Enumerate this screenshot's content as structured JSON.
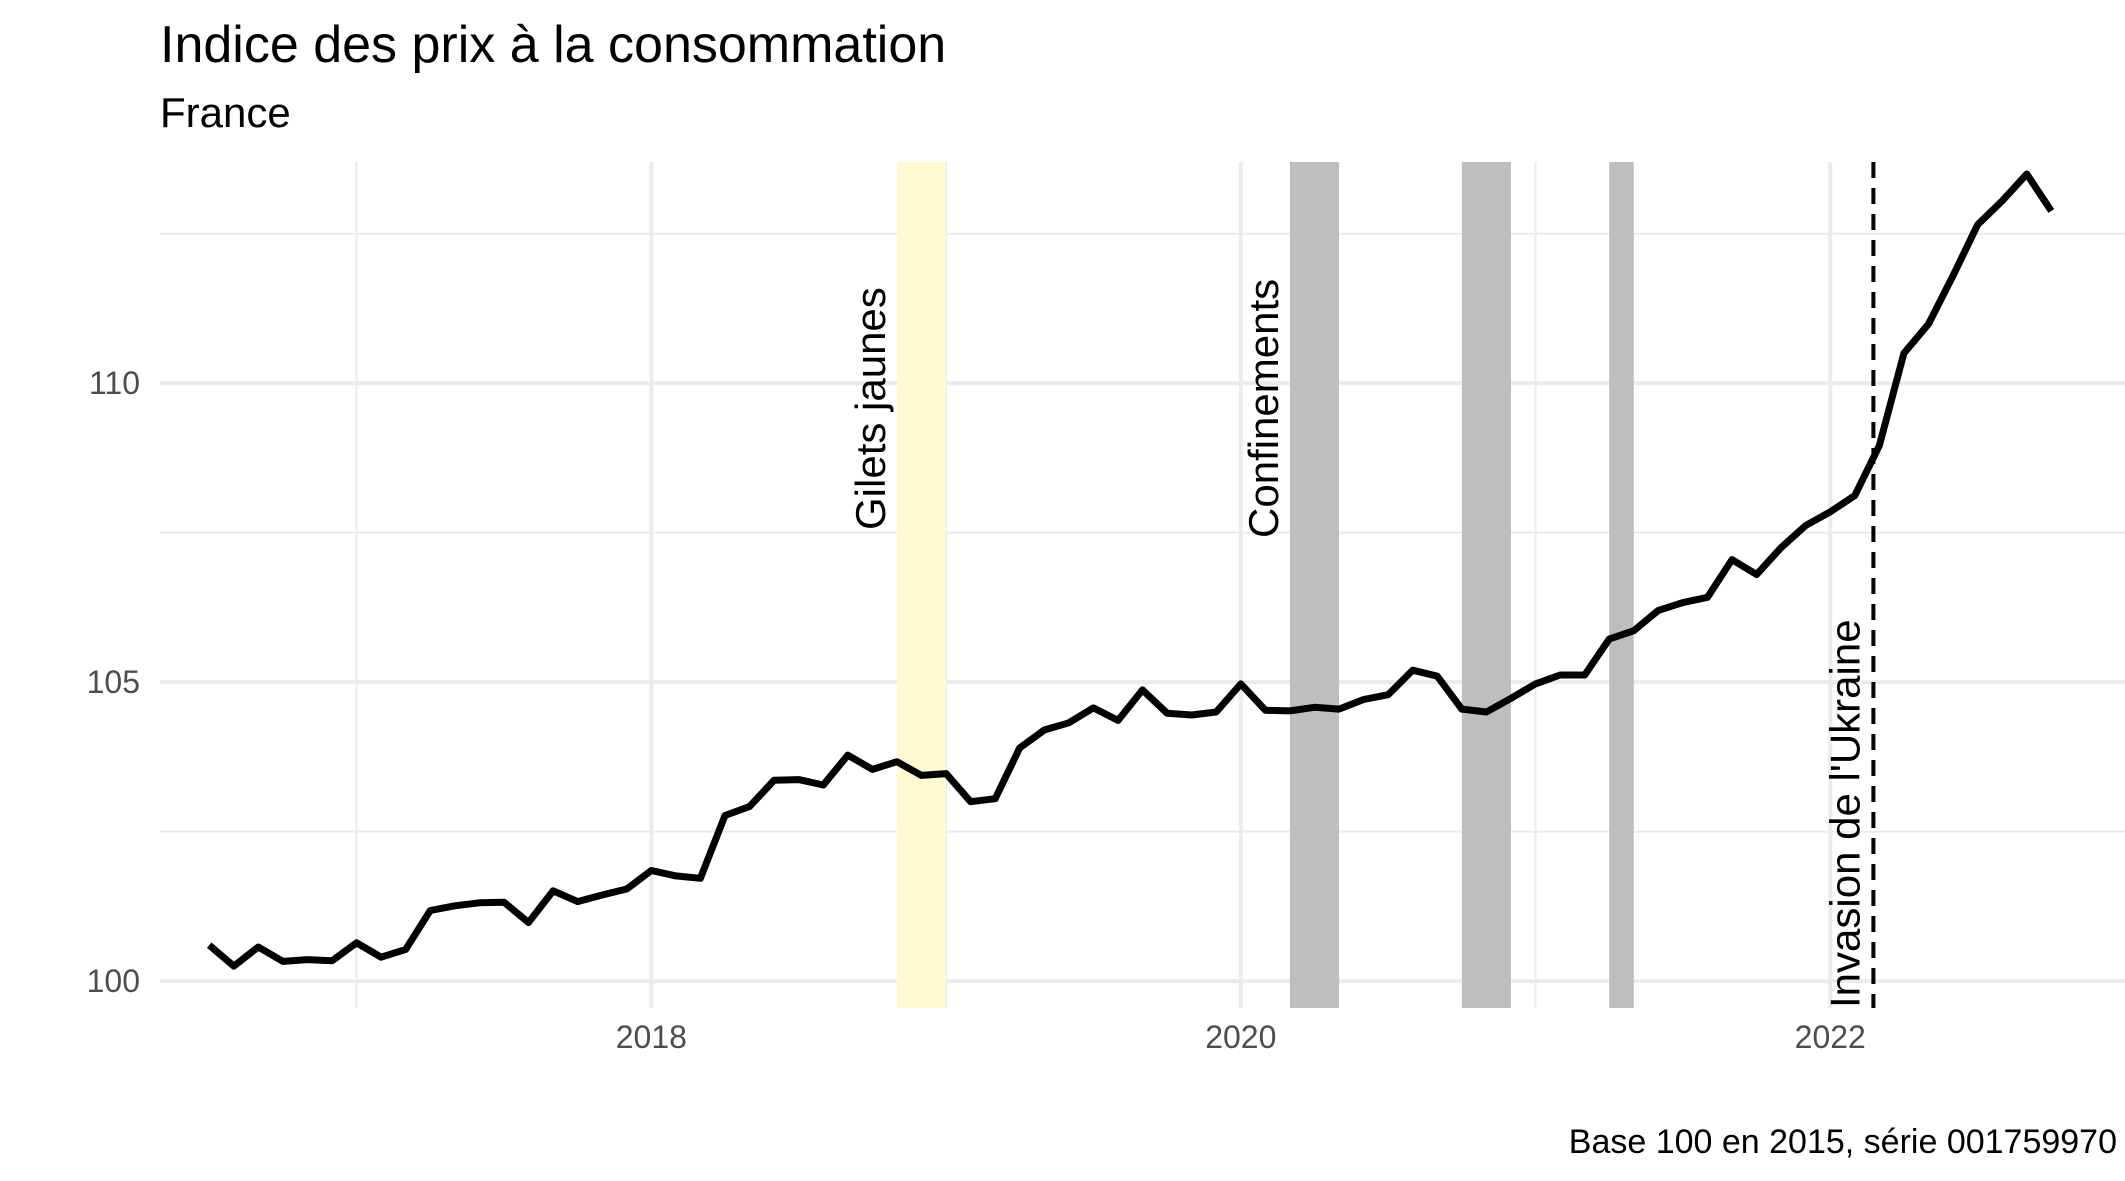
{
  "chart_data": {
    "type": "line",
    "title": "Indice des prix à la consommation",
    "subtitle": "France",
    "caption": "Base 100 en 2015, série 001759970",
    "xlabel": "",
    "ylabel": "",
    "xlim": [
      2016.333,
      2023.0
    ],
    "ylim": [
      99.55,
      113.7
    ],
    "x_ticks": [
      2018,
      2020,
      2022
    ],
    "x_tick_labels": [
      "2018",
      "2020",
      "2022"
    ],
    "y_ticks": [
      100,
      105,
      110
    ],
    "y_tick_labels": [
      "100",
      "105",
      "110"
    ],
    "grid": true,
    "legend": "none",
    "colors": {
      "line": "#000000",
      "gilets_band": "#fff9d2",
      "lockdown_band": "#bebebe",
      "grid": "#ebebeb",
      "tick_text": "#4d4d4d"
    },
    "annotations": {
      "gilets_jaunes": {
        "label": "Gilets jaunes",
        "start": "2018-11",
        "end": "2019-01"
      },
      "confinements": {
        "label": "Confinements",
        "periods": [
          {
            "start": "2020-03",
            "end": "2020-05"
          },
          {
            "start": "2020-10",
            "end": "2020-12"
          },
          {
            "start": "2021-04",
            "end": "2021-05"
          }
        ]
      },
      "invasion": {
        "label": "Invasion de l'Ukraine",
        "date": "2022-02-24"
      }
    },
    "series": [
      {
        "x": [
          "2016-07",
          "2016-08",
          "2016-09",
          "2016-10",
          "2016-11",
          "2016-12",
          "2017-01",
          "2017-02",
          "2017-03",
          "2017-04",
          "2017-05",
          "2017-06",
          "2017-07",
          "2017-08",
          "2017-09",
          "2017-10",
          "2017-11",
          "2017-12",
          "2018-01",
          "2018-02",
          "2018-03",
          "2018-04",
          "2018-05",
          "2018-06",
          "2018-07",
          "2018-08",
          "2018-09",
          "2018-10",
          "2018-11",
          "2018-12",
          "2019-01",
          "2019-02",
          "2019-03",
          "2019-04",
          "2019-05",
          "2019-06",
          "2019-07",
          "2019-08",
          "2019-09",
          "2019-10",
          "2019-11",
          "2019-12",
          "2020-01",
          "2020-02",
          "2020-03",
          "2020-04",
          "2020-05",
          "2020-06",
          "2020-07",
          "2020-08",
          "2020-09",
          "2020-10",
          "2020-11",
          "2020-12",
          "2021-01",
          "2021-02",
          "2021-03",
          "2021-04",
          "2021-05",
          "2021-06",
          "2021-07",
          "2021-08",
          "2021-09",
          "2021-10",
          "2021-11",
          "2021-12",
          "2022-01",
          "2022-02",
          "2022-03",
          "2022-04",
          "2022-05",
          "2022-06",
          "2022-07",
          "2022-08",
          "2022-09",
          "2022-10"
        ],
        "values": [
          100.6,
          100.25,
          100.57,
          100.33,
          100.36,
          100.34,
          100.64,
          100.4,
          100.53,
          101.18,
          101.26,
          101.31,
          101.32,
          100.98,
          101.51,
          101.33,
          101.44,
          101.54,
          101.85,
          101.76,
          101.72,
          102.77,
          102.92,
          103.36,
          103.37,
          103.28,
          103.78,
          103.54,
          103.67,
          103.44,
          103.47,
          103.0,
          103.05,
          103.9,
          104.2,
          104.32,
          104.57,
          104.36,
          104.87,
          104.48,
          104.45,
          104.5,
          104.97,
          104.53,
          104.52,
          104.58,
          104.55,
          104.71,
          104.79,
          105.2,
          105.1,
          104.55,
          104.5,
          104.73,
          104.97,
          105.12,
          105.12,
          105.72,
          105.86,
          106.2,
          106.33,
          106.42,
          107.05,
          106.8,
          107.25,
          107.62,
          107.85,
          108.12,
          108.96,
          110.5,
          110.99,
          111.8,
          112.65,
          113.05,
          113.5,
          112.88
        ]
      }
    ]
  }
}
